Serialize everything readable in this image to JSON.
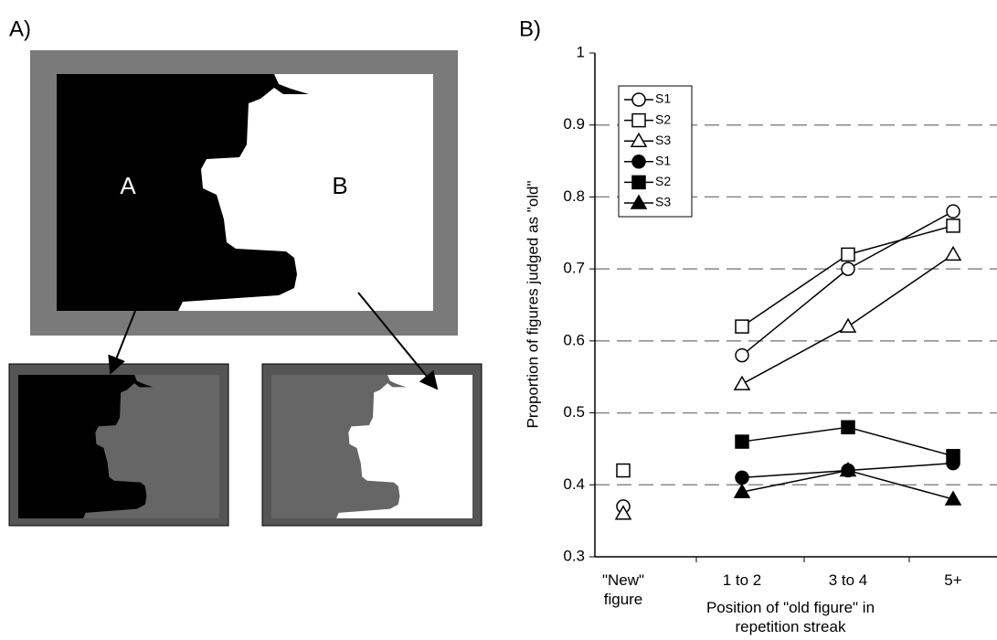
{
  "panel_a": {
    "label": "A)",
    "regions": [
      "A",
      "B"
    ]
  },
  "chart_data": {
    "type": "line",
    "panel_label": "B)",
    "y_label": "Proportion of figures judged as \"old\"",
    "x_label": "Position of \"old figure\" in repetition streak",
    "categories": [
      "\"New\" figure",
      "1 to 2",
      "3 to 4",
      "5+"
    ],
    "ylim": [
      0.3,
      1
    ],
    "yticks": [
      0.3,
      0.4,
      0.5,
      0.6,
      0.7,
      0.8,
      0.9,
      1
    ],
    "grid": true,
    "series": [
      {
        "name": "S1",
        "color": "#000000",
        "marker": "circle",
        "filled": false,
        "values": [
          0.37,
          0.58,
          0.7,
          0.78
        ]
      },
      {
        "name": "S2",
        "color": "#000000",
        "marker": "square",
        "filled": false,
        "values": [
          0.42,
          0.62,
          0.72,
          0.76
        ]
      },
      {
        "name": "S3",
        "color": "#000000",
        "marker": "triangle",
        "filled": false,
        "values": [
          0.36,
          0.54,
          0.62,
          0.72
        ]
      },
      {
        "name": "S1",
        "color": "#000000",
        "marker": "circle",
        "filled": true,
        "values": [
          null,
          0.41,
          0.42,
          0.43
        ]
      },
      {
        "name": "S2",
        "color": "#000000",
        "marker": "square",
        "filled": true,
        "values": [
          null,
          0.46,
          0.48,
          0.44
        ]
      },
      {
        "name": "S3",
        "color": "#000000",
        "marker": "triangle",
        "filled": true,
        "values": [
          null,
          0.39,
          0.42,
          0.38
        ]
      }
    ]
  }
}
